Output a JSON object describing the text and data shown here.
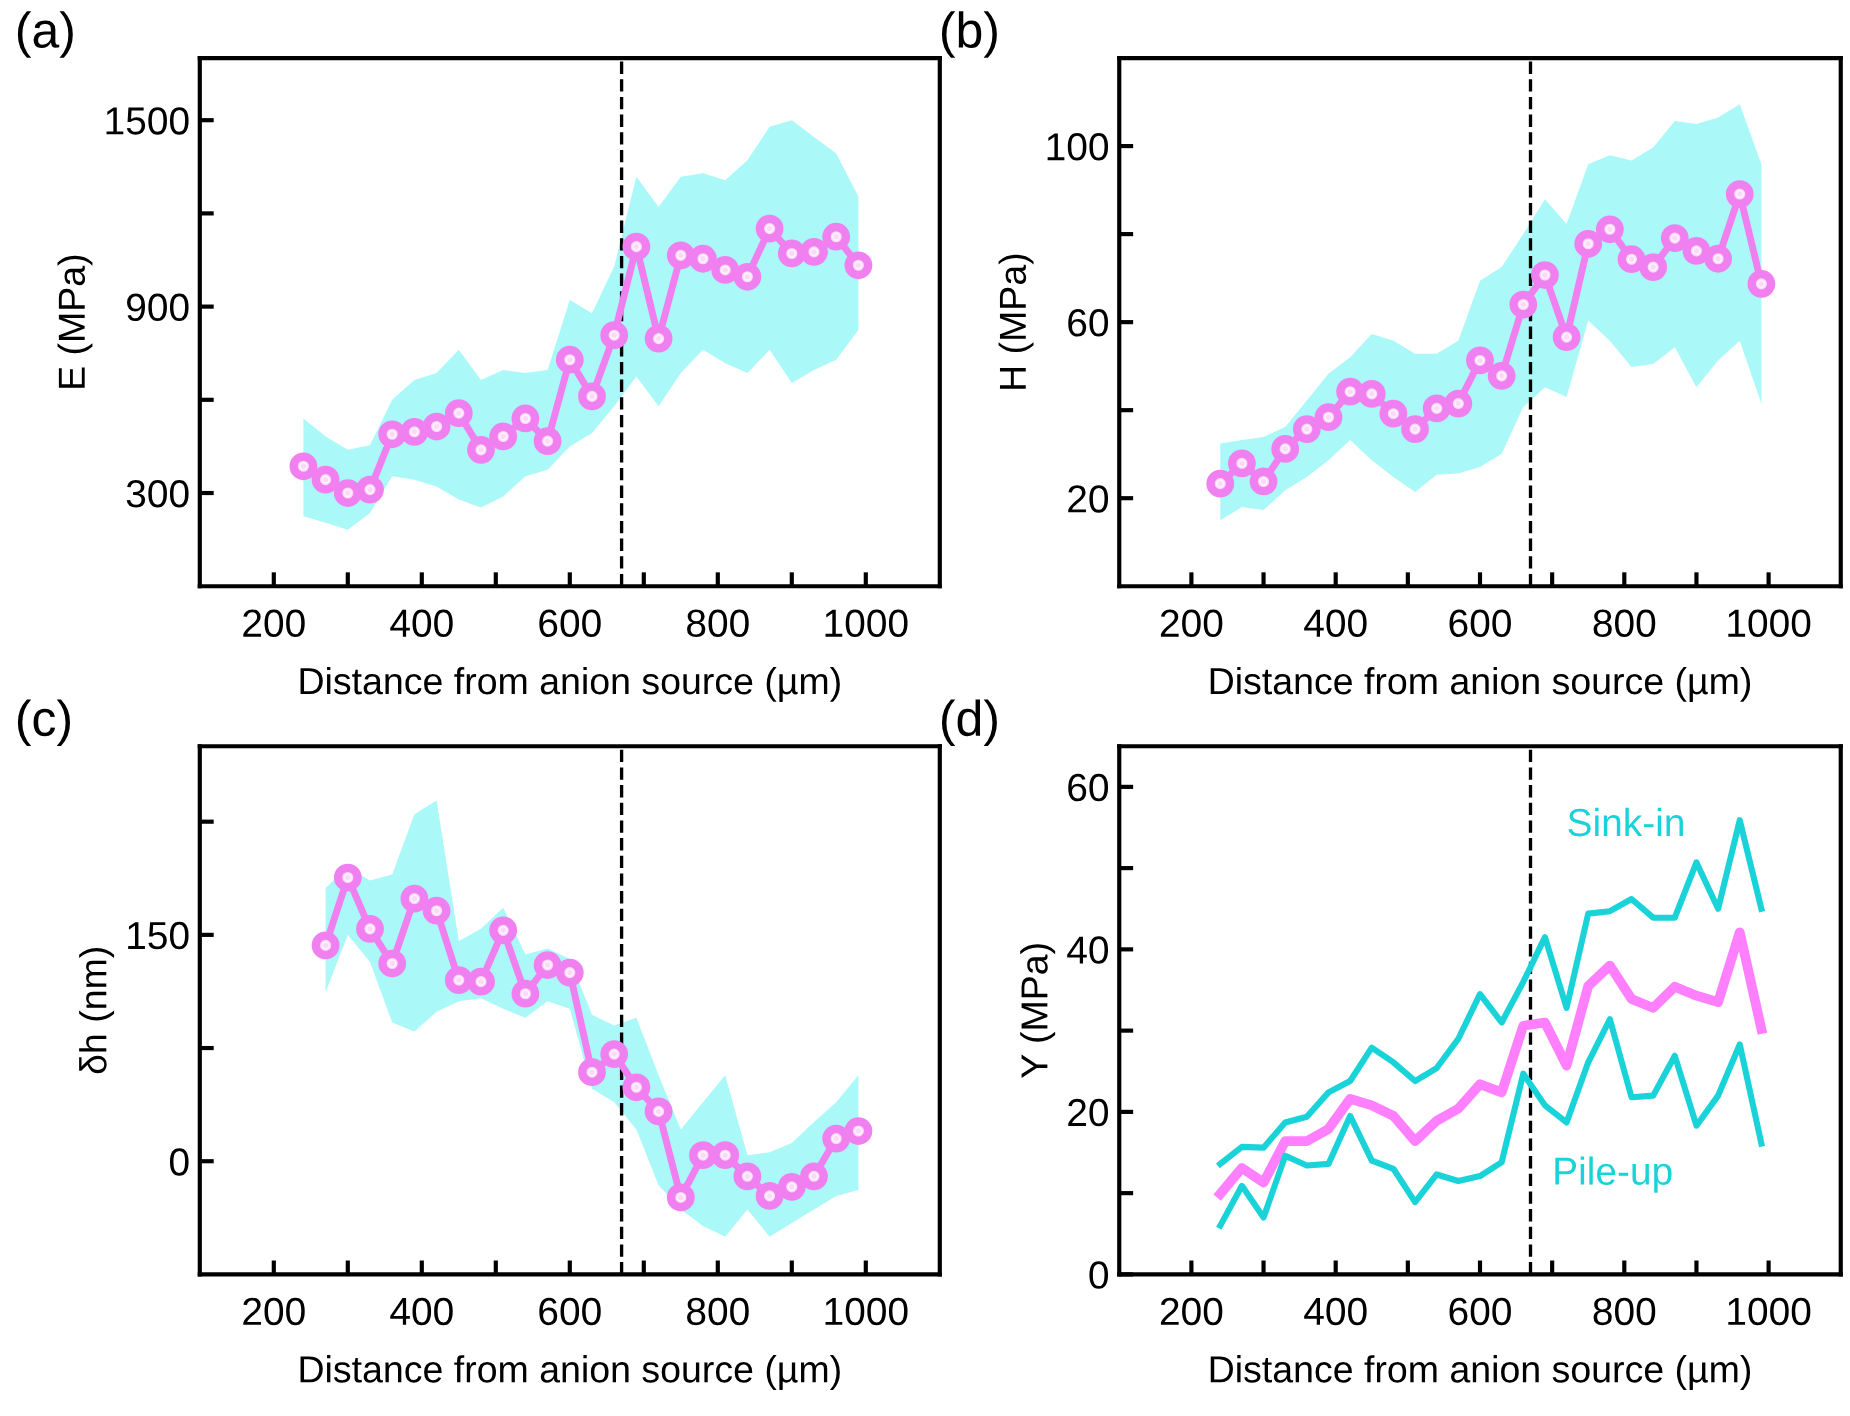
{
  "chart_data": [
    {
      "type": "line",
      "title": "(a)",
      "xlabel": "Distance from anion source (µm)",
      "ylabel": "E (MPa)",
      "marker": "circle",
      "grid": false,
      "legend": false,
      "xlim": [
        100,
        1100
      ],
      "xticks": [
        200,
        {
          "value": 300,
          "label": null
        },
        400,
        {
          "value": 500,
          "label": null
        },
        600,
        {
          "value": 700,
          "label": null
        },
        800,
        {
          "value": 900,
          "label": null
        },
        1000
      ],
      "ylim": [
        0,
        1700
      ],
      "yticks": [
        300,
        {
          "value": 600,
          "label": null
        },
        900,
        {
          "value": 1200,
          "label": null
        },
        1500
      ],
      "x": [
        240,
        270,
        300,
        330,
        360,
        390,
        420,
        450,
        480,
        510,
        540,
        570,
        600,
        630,
        660,
        690,
        720,
        750,
        780,
        810,
        840,
        870,
        900,
        930,
        960,
        990
      ],
      "series": [
        {
          "color": "#f080f0",
          "values": [
            386,
            343,
            300,
            311,
            489,
            497,
            514,
            557,
            439,
            482,
            540,
            467,
            729,
            611,
            808,
            1093,
            797,
            1065,
            1054,
            1018,
            996,
            1151,
            1071,
            1076,
            1125,
            1033
          ],
          "upper": [
            540,
            482,
            439,
            454,
            600,
            664,
            686,
            761,
            664,
            696,
            686,
            696,
            921,
            879,
            1029,
            1318,
            1221,
            1318,
            1329,
            1307,
            1371,
            1479,
            1500,
            1446,
            1393,
            1254
          ],
          "lower": [
            225,
            204,
            182,
            236,
            354,
            343,
            321,
            279,
            253,
            289,
            354,
            375,
            450,
            493,
            579,
            675,
            579,
            686,
            761,
            718,
            686,
            761,
            654,
            696,
            729,
            825
          ]
        }
      ],
      "ref_lines": [
        {
          "axis": "x",
          "value": 670,
          "line_style": "dashed",
          "color": "#000000"
        }
      ]
    },
    {
      "type": "line",
      "title": "(b)",
      "xlabel": "Distance from anion source (µm)",
      "ylabel": "H (MPa)",
      "marker": "circle",
      "grid": false,
      "legend": false,
      "xlim": [
        100,
        1100
      ],
      "xticks": [
        200,
        {
          "value": 300,
          "label": null
        },
        400,
        {
          "value": 500,
          "label": null
        },
        600,
        {
          "value": 700,
          "label": null
        },
        800,
        {
          "value": 900,
          "label": null
        },
        1000
      ],
      "ylim": [
        0,
        120
      ],
      "yticks": [
        20,
        {
          "value": 40,
          "label": null
        },
        60,
        {
          "value": 80,
          "label": null
        },
        100
      ],
      "x": [
        240,
        270,
        300,
        330,
        360,
        390,
        420,
        450,
        480,
        510,
        540,
        570,
        600,
        630,
        660,
        690,
        720,
        750,
        780,
        810,
        840,
        870,
        900,
        930,
        960,
        990
      ],
      "series": [
        {
          "color": "#f080f0",
          "values": [
            23.3,
            27.9,
            23.8,
            31.2,
            35.7,
            38.4,
            44.2,
            43.7,
            39.2,
            35.7,
            40.4,
            41.5,
            51.3,
            47.8,
            64.0,
            70.7,
            56.6,
            77.8,
            81.1,
            74.3,
            72.5,
            79.1,
            76.2,
            74.4,
            89.1,
            68.7
          ],
          "upper": [
            32.4,
            33.2,
            33.9,
            36.2,
            42.2,
            48.3,
            52,
            57.3,
            55.8,
            52.8,
            52.8,
            55.8,
            69.4,
            72.5,
            80,
            87.9,
            82.3,
            95.9,
            97.9,
            96.7,
            99.7,
            105.7,
            105,
            106.5,
            109.5,
            95.9
          ],
          "lower": [
            15,
            18,
            17.3,
            21.8,
            24.8,
            28.6,
            33.2,
            28.6,
            24.8,
            21.4,
            25.3,
            25.6,
            27.1,
            30.1,
            40.7,
            45.2,
            43,
            60.4,
            55.8,
            49.8,
            50.5,
            54.3,
            45.2,
            51.3,
            55.8,
            41.5
          ]
        }
      ],
      "ref_lines": [
        {
          "axis": "x",
          "value": 670,
          "line_style": "dashed",
          "color": "#000000"
        }
      ]
    },
    {
      "type": "line",
      "title": "(c)",
      "xlabel": "Distance from anion source (µm)",
      "ylabel": "δh (nm)",
      "marker": "circle",
      "grid": false,
      "legend": false,
      "xlim": [
        100,
        1100
      ],
      "xticks": [
        200,
        {
          "value": 300,
          "label": null
        },
        400,
        {
          "value": 500,
          "label": null
        },
        600,
        {
          "value": 700,
          "label": null
        },
        800,
        {
          "value": 900,
          "label": null
        },
        1000
      ],
      "ylim": [
        -75,
        275
      ],
      "yticks": [
        0,
        {
          "value": 75,
          "label": null
        },
        150,
        {
          "value": 225,
          "label": null
        }
      ],
      "x": [
        270,
        300,
        330,
        360,
        390,
        420,
        450,
        480,
        510,
        540,
        570,
        600,
        630,
        660,
        690,
        720,
        750,
        780,
        810,
        840,
        870,
        900,
        930,
        960,
        990
      ],
      "series": [
        {
          "color": "#f080f0",
          "values": [
            143,
            188,
            154,
            131,
            174,
            166,
            120,
            119,
            153,
            111,
            130,
            125,
            59,
            71,
            49,
            33,
            -24,
            4,
            4,
            -10,
            -23,
            -17,
            -10,
            15,
            20
          ],
          "upper": [
            181,
            195,
            186,
            190,
            230,
            239,
            146,
            154,
            168,
            137,
            141,
            134,
            97,
            90,
            95,
            57,
            21,
            39,
            57,
            4,
            6,
            12,
            26,
            39,
            57
          ],
          "lower": [
            112,
            150,
            132,
            92,
            86,
            99,
            106,
            108,
            101,
            95,
            106,
            101,
            48,
            39,
            21,
            -16,
            -32,
            -43,
            -50,
            -32,
            -50,
            -41,
            -32,
            -23,
            -19
          ]
        }
      ],
      "ref_lines": [
        {
          "axis": "x",
          "value": 670,
          "line_style": "dashed",
          "color": "#000000"
        }
      ]
    },
    {
      "type": "line",
      "title": "(d)",
      "xlabel": "Distance from anion source (µm)",
      "ylabel": "Y (MPa)",
      "marker": "none",
      "grid": false,
      "legend": false,
      "xlim": [
        100,
        1100
      ],
      "xticks": [
        200,
        {
          "value": 300,
          "label": null
        },
        400,
        {
          "value": 500,
          "label": null
        },
        600,
        {
          "value": 700,
          "label": null
        },
        800,
        {
          "value": 900,
          "label": null
        },
        1000
      ],
      "ylim": [
        0,
        65
      ],
      "yticks": [
        0,
        {
          "value": 10,
          "label": null
        },
        20,
        {
          "value": 30,
          "label": null
        },
        40,
        {
          "value": 50,
          "label": null
        },
        60
      ],
      "x": [
        240,
        270,
        300,
        330,
        360,
        390,
        420,
        450,
        480,
        510,
        540,
        570,
        600,
        630,
        660,
        690,
        720,
        750,
        780,
        810,
        840,
        870,
        900,
        930,
        960,
        990
      ],
      "series": [
        {
          "name": "Sink-in",
          "color": "#1ad3d9",
          "values": [
            13.6,
            15.7,
            15.6,
            18.7,
            19.4,
            22.4,
            23.8,
            27.9,
            26.1,
            23.8,
            25.4,
            29,
            34.5,
            31,
            36,
            41.5,
            32.8,
            44.4,
            44.7,
            46.2,
            43.9,
            43.9,
            50.7,
            45,
            55.9,
            45
          ]
        },
        {
          "color": "#ff80ff",
          "values": [
            9.9,
            13.1,
            11.3,
            16.4,
            16.4,
            17.9,
            21.6,
            20.8,
            19.5,
            16.4,
            18.9,
            20.4,
            23.4,
            22.4,
            30.6,
            31.0,
            25.7,
            35.5,
            38,
            33.9,
            32.8,
            35.4,
            34.3,
            33.5,
            42.1,
            30.2
          ]
        },
        {
          "name": "Pile-up",
          "color": "#1ad3d9",
          "values": [
            6,
            10.9,
            7,
            14.6,
            13.4,
            13.6,
            19.5,
            14,
            13,
            8.9,
            12.3,
            11.5,
            12.1,
            13.8,
            24.7,
            20.8,
            18.7,
            26.1,
            31.4,
            21.8,
            22,
            26.9,
            18.3,
            22,
            28.3,
            16.1
          ]
        }
      ],
      "ref_lines": [
        {
          "axis": "x",
          "value": 670,
          "line_style": "dashed",
          "color": "#000000"
        }
      ]
    }
  ]
}
